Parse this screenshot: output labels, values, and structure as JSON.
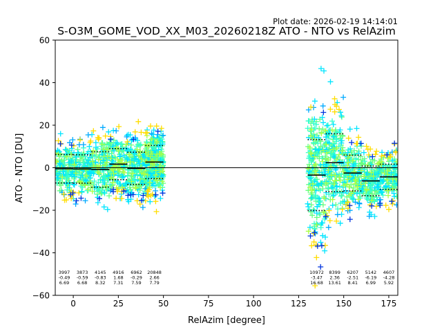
{
  "chart_data": {
    "type": "scatter",
    "plot_date": "Plot date: 2026-02-19 14:14:01",
    "title": "S-O3M_GOME_VOD_XX_M03_20260218Z ATO - NTO vs RelAzim",
    "xlabel": "RelAzim [degree]",
    "ylabel": "ATO - NTO [DU]",
    "xlim": [
      -10,
      180
    ],
    "ylim": [
      -60,
      60
    ],
    "xticks": [
      0,
      25,
      50,
      75,
      100,
      125,
      150,
      175
    ],
    "yticks": [
      -60,
      -40,
      -20,
      0,
      20,
      40,
      60
    ],
    "zero_line": 0,
    "bins": [
      {
        "x": 0,
        "mean": -0.49,
        "std": 6.69,
        "count": "3997"
      },
      {
        "x": 10,
        "mean": -0.59,
        "std": 6.68,
        "count": "3873"
      },
      {
        "x": 20,
        "mean": -0.83,
        "std": 8.32,
        "count": "4145"
      },
      {
        "x": 30,
        "mean": 1.68,
        "std": 7.31,
        "count": "4916"
      },
      {
        "x": 40,
        "mean": -0.29,
        "std": 7.59,
        "count": "6962"
      },
      {
        "x": 50,
        "mean": 2.66,
        "std": 7.79,
        "count": "20848"
      },
      {
        "x": 140,
        "mean": -3.47,
        "std": 16.68,
        "count": "10972"
      },
      {
        "x": 150,
        "mean": 2.36,
        "std": 13.61,
        "count": "8399"
      },
      {
        "x": 160,
        "mean": -2.51,
        "std": 8.41,
        "count": "6207"
      },
      {
        "x": 170,
        "mean": -6.19,
        "std": 6.99,
        "count": "5142"
      },
      {
        "x": 180,
        "mean": -4.28,
        "std": 5.92,
        "count": "4607"
      }
    ],
    "point_colors": [
      "#66ff80",
      "#33ffcc",
      "#00e5ff",
      "#00aaff",
      "#aaff44",
      "#ffdd00",
      "#0033dd"
    ],
    "grid": false
  }
}
